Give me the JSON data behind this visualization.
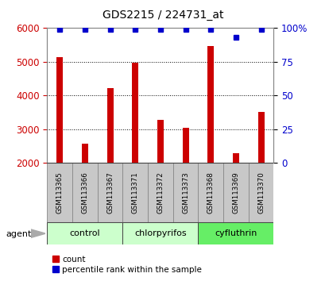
{
  "title": "GDS2215 / 224731_at",
  "samples": [
    "GSM113365",
    "GSM113366",
    "GSM113367",
    "GSM113371",
    "GSM113372",
    "GSM113373",
    "GSM113368",
    "GSM113369",
    "GSM113370"
  ],
  "counts": [
    5150,
    2580,
    4220,
    4980,
    3270,
    3040,
    5470,
    2290,
    3520
  ],
  "percentile_ranks": [
    99,
    99,
    99,
    99,
    99,
    99,
    99,
    93,
    99
  ],
  "groups": [
    {
      "label": "control",
      "indices": [
        0,
        1,
        2
      ],
      "color": "#ccffcc"
    },
    {
      "label": "chlorpyrifos",
      "indices": [
        3,
        4,
        5
      ],
      "color": "#ccffcc"
    },
    {
      "label": "cyfluthrin",
      "indices": [
        6,
        7,
        8
      ],
      "color": "#66ee66"
    }
  ],
  "ylim_left": [
    2000,
    6000
  ],
  "ylim_right": [
    0,
    100
  ],
  "yticks_left": [
    2000,
    3000,
    4000,
    5000,
    6000
  ],
  "yticks_right": [
    0,
    25,
    50,
    75,
    100
  ],
  "bar_color": "#cc0000",
  "dot_color": "#0000cc",
  "bar_width": 0.25,
  "plot_bg_color": "#ffffff",
  "ylabel_left_color": "#cc0000",
  "ylabel_right_color": "#0000cc",
  "title_color": "#000000",
  "dot_marker": "s",
  "dot_size": 5,
  "label_count": "count",
  "label_percentile": "percentile rank within the sample",
  "agent_label": "agent",
  "sample_box_color": "#c8c8c8",
  "right_tick_labels": [
    "0",
    "25",
    "50",
    "75",
    "100%"
  ]
}
